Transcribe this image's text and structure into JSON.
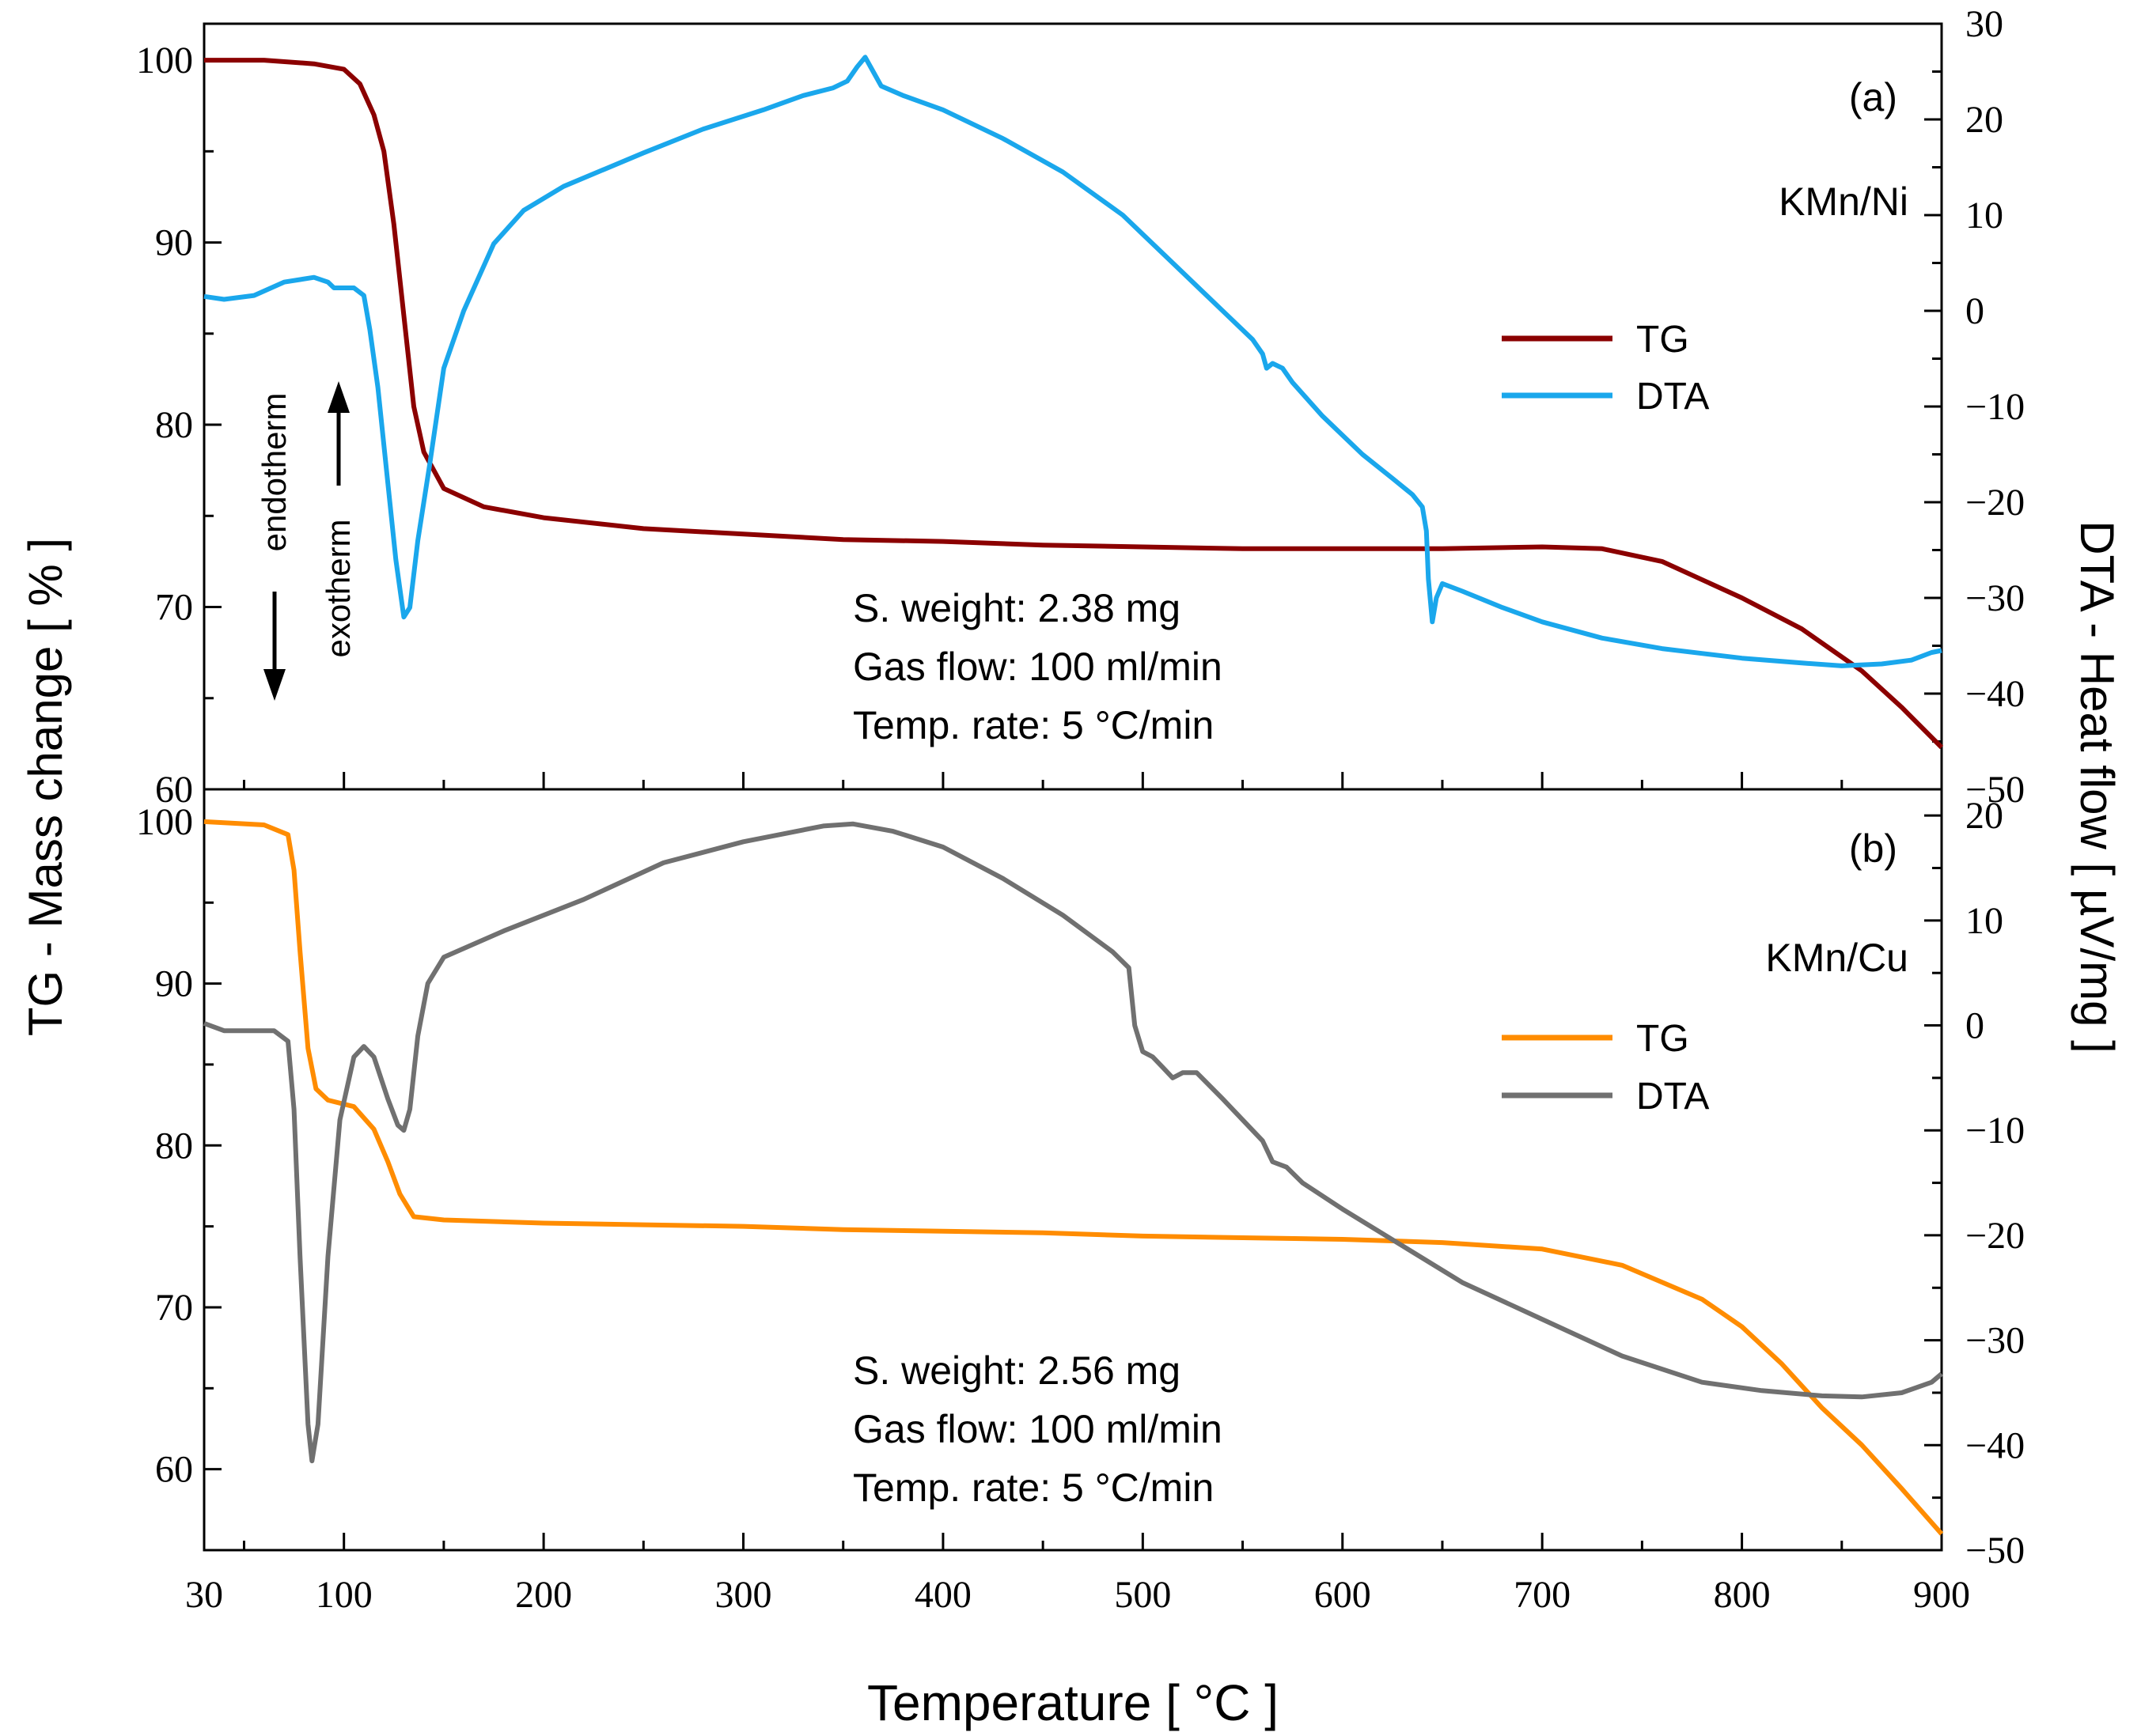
{
  "chart_data": [
    {
      "type": "line",
      "panel_label": "(a)",
      "sample_label": "KMn/Ni",
      "x_range": [
        30,
        900
      ],
      "ylim_left": [
        60,
        102
      ],
      "ylim_right": [
        -50,
        30
      ],
      "right_ticks": [
        30,
        20,
        10,
        0,
        -10,
        -20,
        -30,
        -40,
        -50
      ],
      "left_ticks": [
        60,
        70,
        80,
        90,
        100
      ],
      "annotations": [
        "S. weight: 2.38 mg",
        "Gas flow: 100 ml/min",
        "Temp. rate: 5 °C/min"
      ],
      "arrow_labels": {
        "endotherm": "endotherm",
        "exotherm": "exotherm"
      },
      "legend_position": "center-right",
      "series": [
        {
          "name": "TG",
          "axis": "left",
          "color": "#8b0000",
          "points": [
            [
              30,
              100
            ],
            [
              60,
              100
            ],
            [
              85,
              99.8
            ],
            [
              100,
              99.5
            ],
            [
              108,
              98.7
            ],
            [
              115,
              97
            ],
            [
              120,
              95
            ],
            [
              125,
              91
            ],
            [
              130,
              86
            ],
            [
              135,
              81
            ],
            [
              140,
              78.5
            ],
            [
              150,
              76.5
            ],
            [
              170,
              75.5
            ],
            [
              200,
              74.9
            ],
            [
              250,
              74.3
            ],
            [
              300,
              74
            ],
            [
              350,
              73.7
            ],
            [
              400,
              73.6
            ],
            [
              450,
              73.4
            ],
            [
              500,
              73.3
            ],
            [
              550,
              73.2
            ],
            [
              600,
              73.2
            ],
            [
              650,
              73.2
            ],
            [
              700,
              73.3
            ],
            [
              730,
              73.2
            ],
            [
              760,
              72.5
            ],
            [
              800,
              70.5
            ],
            [
              830,
              68.8
            ],
            [
              860,
              66.5
            ],
            [
              880,
              64.5
            ],
            [
              900,
              62.3
            ]
          ]
        },
        {
          "name": "DTA",
          "axis": "right",
          "color": "#1aa7ec",
          "points": [
            [
              30,
              1.5
            ],
            [
              40,
              1.2
            ],
            [
              55,
              1.6
            ],
            [
              70,
              3
            ],
            [
              85,
              3.5
            ],
            [
              92,
              3
            ],
            [
              95,
              2.4
            ],
            [
              105,
              2.4
            ],
            [
              110,
              1.6
            ],
            [
              113,
              -2
            ],
            [
              117,
              -8
            ],
            [
              122,
              -18
            ],
            [
              126,
              -26
            ],
            [
              130,
              -32
            ],
            [
              133,
              -31
            ],
            [
              137,
              -24
            ],
            [
              143,
              -16
            ],
            [
              150,
              -6
            ],
            [
              160,
              0
            ],
            [
              175,
              7
            ],
            [
              190,
              10.5
            ],
            [
              210,
              13
            ],
            [
              250,
              16.5
            ],
            [
              280,
              19
            ],
            [
              310,
              21
            ],
            [
              330,
              22.5
            ],
            [
              345,
              23.3
            ],
            [
              352,
              24
            ],
            [
              357,
              25.5
            ],
            [
              361,
              26.5
            ],
            [
              365,
              25
            ],
            [
              369,
              23.5
            ],
            [
              380,
              22.5
            ],
            [
              400,
              21
            ],
            [
              430,
              18
            ],
            [
              460,
              14.5
            ],
            [
              490,
              10
            ],
            [
              500,
              8
            ],
            [
              520,
              4
            ],
            [
              540,
              0
            ],
            [
              555,
              -3
            ],
            [
              560,
              -4.5
            ],
            [
              562,
              -6
            ],
            [
              565,
              -5.5
            ],
            [
              570,
              -6
            ],
            [
              575,
              -7.5
            ],
            [
              590,
              -11
            ],
            [
              610,
              -15
            ],
            [
              625,
              -17.5
            ],
            [
              635,
              -19.2
            ],
            [
              640,
              -20.5
            ],
            [
              642,
              -23
            ],
            [
              643,
              -28
            ],
            [
              645,
              -32.5
            ],
            [
              647,
              -30
            ],
            [
              650,
              -28.5
            ],
            [
              660,
              -29.3
            ],
            [
              680,
              -31
            ],
            [
              700,
              -32.5
            ],
            [
              730,
              -34.2
            ],
            [
              760,
              -35.3
            ],
            [
              780,
              -35.8
            ],
            [
              800,
              -36.3
            ],
            [
              830,
              -36.8
            ],
            [
              850,
              -37.1
            ],
            [
              870,
              -36.9
            ],
            [
              885,
              -36.5
            ],
            [
              895,
              -35.7
            ],
            [
              900,
              -35.5
            ]
          ]
        }
      ]
    },
    {
      "type": "line",
      "panel_label": "(b)",
      "sample_label": "KMn/Cu",
      "x_range": [
        30,
        900
      ],
      "ylim_left": [
        55,
        102
      ],
      "ylim_right": [
        -50,
        22.5
      ],
      "right_ticks": [
        20,
        10,
        0,
        -10,
        -20,
        -30,
        -40,
        -50
      ],
      "left_ticks": [
        60,
        70,
        80,
        90,
        100
      ],
      "annotations": [
        "S. weight: 2.56 mg",
        "Gas flow: 100 ml/min",
        "Temp. rate: 5 °C/min"
      ],
      "legend_position": "center-right",
      "series": [
        {
          "name": "TG",
          "axis": "left",
          "color": "#ff8c00",
          "points": [
            [
              30,
              100
            ],
            [
              60,
              99.8
            ],
            [
              72,
              99.2
            ],
            [
              75,
              97
            ],
            [
              78,
              92
            ],
            [
              82,
              86
            ],
            [
              86,
              83.5
            ],
            [
              92,
              82.8
            ],
            [
              105,
              82.4
            ],
            [
              115,
              81
            ],
            [
              122,
              79
            ],
            [
              128,
              77
            ],
            [
              135,
              75.6
            ],
            [
              150,
              75.4
            ],
            [
              200,
              75.2
            ],
            [
              250,
              75.1
            ],
            [
              300,
              75
            ],
            [
              350,
              74.8
            ],
            [
              400,
              74.7
            ],
            [
              450,
              74.6
            ],
            [
              500,
              74.4
            ],
            [
              550,
              74.3
            ],
            [
              600,
              74.2
            ],
            [
              650,
              74
            ],
            [
              700,
              73.6
            ],
            [
              740,
              72.6
            ],
            [
              780,
              70.5
            ],
            [
              800,
              68.8
            ],
            [
              820,
              66.5
            ],
            [
              840,
              63.8
            ],
            [
              860,
              61.5
            ],
            [
              880,
              58.8
            ],
            [
              900,
              56
            ]
          ]
        },
        {
          "name": "DTA",
          "axis": "right",
          "color": "#707070",
          "points": [
            [
              30,
              0.2
            ],
            [
              40,
              -0.5
            ],
            [
              55,
              -0.5
            ],
            [
              65,
              -0.5
            ],
            [
              72,
              -1.5
            ],
            [
              75,
              -8
            ],
            [
              78,
              -22
            ],
            [
              82,
              -38
            ],
            [
              84,
              -41.5
            ],
            [
              87,
              -38
            ],
            [
              92,
              -22
            ],
            [
              98,
              -9
            ],
            [
              105,
              -3
            ],
            [
              110,
              -2
            ],
            [
              115,
              -3
            ],
            [
              122,
              -7
            ],
            [
              127,
              -9.5
            ],
            [
              130,
              -10
            ],
            [
              133,
              -8
            ],
            [
              137,
              -1
            ],
            [
              142,
              4
            ],
            [
              150,
              6.5
            ],
            [
              180,
              9
            ],
            [
              220,
              12
            ],
            [
              260,
              15.5
            ],
            [
              300,
              17.5
            ],
            [
              340,
              19
            ],
            [
              355,
              19.2
            ],
            [
              375,
              18.5
            ],
            [
              400,
              17
            ],
            [
              430,
              14
            ],
            [
              460,
              10.5
            ],
            [
              485,
              7
            ],
            [
              493,
              5.5
            ],
            [
              496,
              0
            ],
            [
              500,
              -2.5
            ],
            [
              505,
              -3
            ],
            [
              510,
              -4
            ],
            [
              515,
              -5
            ],
            [
              520,
              -4.5
            ],
            [
              527,
              -4.5
            ],
            [
              540,
              -7
            ],
            [
              560,
              -11
            ],
            [
              565,
              -13
            ],
            [
              572,
              -13.5
            ],
            [
              580,
              -15
            ],
            [
              600,
              -17.5
            ],
            [
              630,
              -21
            ],
            [
              660,
              -24.5
            ],
            [
              700,
              -28
            ],
            [
              740,
              -31.5
            ],
            [
              780,
              -34
            ],
            [
              810,
              -34.8
            ],
            [
              840,
              -35.3
            ],
            [
              860,
              -35.4
            ],
            [
              880,
              -35
            ],
            [
              895,
              -34
            ],
            [
              900,
              -33.2
            ]
          ]
        }
      ]
    }
  ],
  "x_axis": {
    "ticks": [
      30,
      100,
      200,
      300,
      400,
      500,
      600,
      700,
      800,
      900
    ],
    "label": "Temperature [ °C ]"
  },
  "left_axis_label": "TG - Mass change [ % ]",
  "right_axis_label": "DTA - Heat flow [ µV/mg ]"
}
